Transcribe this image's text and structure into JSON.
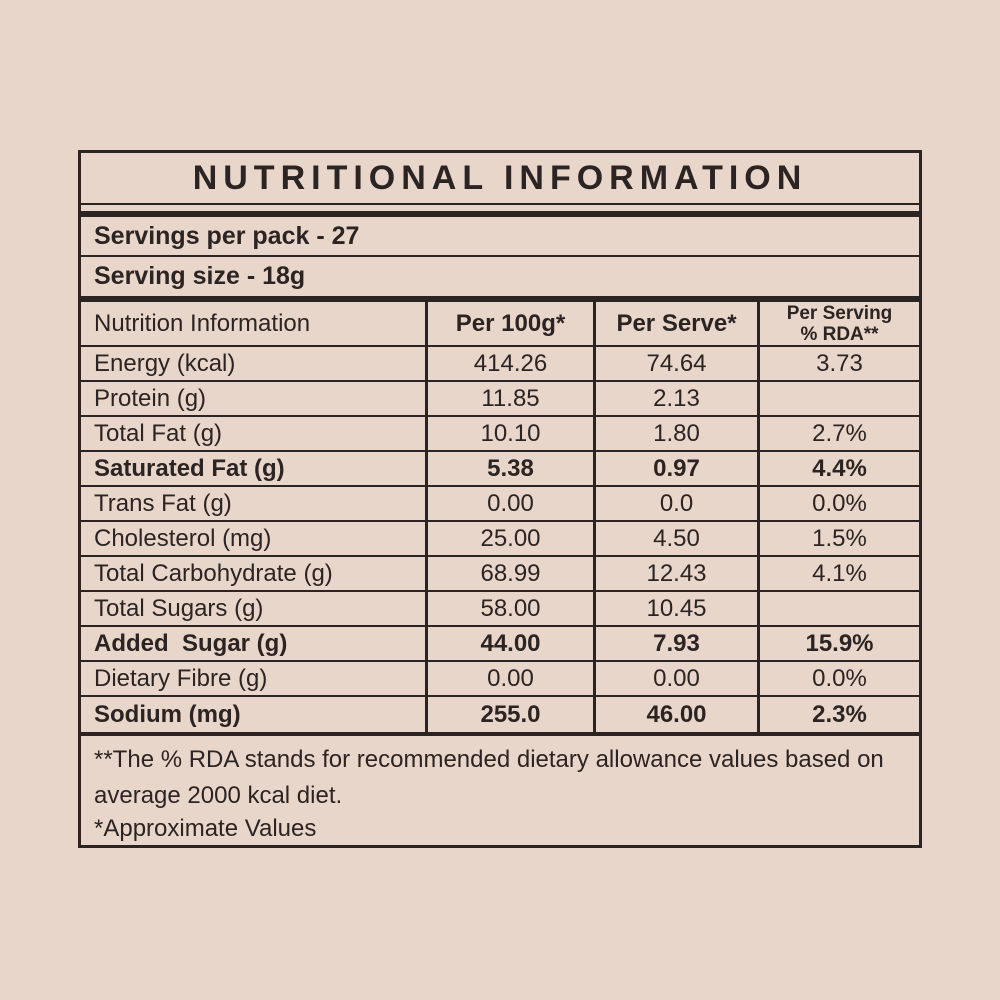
{
  "page": {
    "background_color": "#e9d6ca",
    "ink_color": "#2b2423"
  },
  "title": "NUTRITIONAL INFORMATION",
  "serving_info": {
    "servings_per_pack": "Servings per pack - 27",
    "serving_size": "Serving size - 18g"
  },
  "table": {
    "headers": {
      "col1": "Nutrition Information",
      "col2": "Per 100g*",
      "col3": "Per Serve*",
      "col4_line1": "Per Serving",
      "col4_line2": "% RDA**"
    },
    "rows": [
      {
        "label": "Energy (kcal)",
        "per100": "414.26",
        "serve": "74.64",
        "rda": "3.73",
        "bold": false
      },
      {
        "label": "Protein (g)",
        "per100": "11.85",
        "serve": "2.13",
        "rda": "",
        "bold": false
      },
      {
        "label": "Total Fat (g)",
        "per100": "10.10",
        "serve": "1.80",
        "rda": "2.7%",
        "bold": false
      },
      {
        "label": "Saturated Fat (g)",
        "per100": "5.38",
        "serve": "0.97",
        "rda": "4.4%",
        "bold": true
      },
      {
        "label": "Trans Fat (g)",
        "per100": "0.00",
        "serve": "0.0",
        "rda": "0.0%",
        "bold": false
      },
      {
        "label": "Cholesterol (mg)",
        "per100": "25.00",
        "serve": "4.50",
        "rda": "1.5%",
        "bold": false
      },
      {
        "label": "Total Carbohydrate (g)",
        "per100": "68.99",
        "serve": "12.43",
        "rda": "4.1%",
        "bold": false
      },
      {
        "label": "Total Sugars (g)",
        "per100": "58.00",
        "serve": "10.45",
        "rda": "",
        "bold": false
      },
      {
        "label": "Added  Sugar (g)",
        "per100": "44.00",
        "serve": "7.93",
        "rda": "15.9%",
        "bold": true
      },
      {
        "label": "Dietary Fibre (g)",
        "per100": "0.00",
        "serve": "0.00",
        "rda": "0.0%",
        "bold": false
      },
      {
        "label": "Sodium (mg)",
        "per100": "255.0",
        "serve": "46.00",
        "rda": "2.3%",
        "bold": true
      }
    ]
  },
  "footnotes": {
    "line1": "**The % RDA stands for recommended dietary allowance values based on",
    "line2": "average 2000 kcal diet.",
    "line3": "*Approximate Values"
  }
}
